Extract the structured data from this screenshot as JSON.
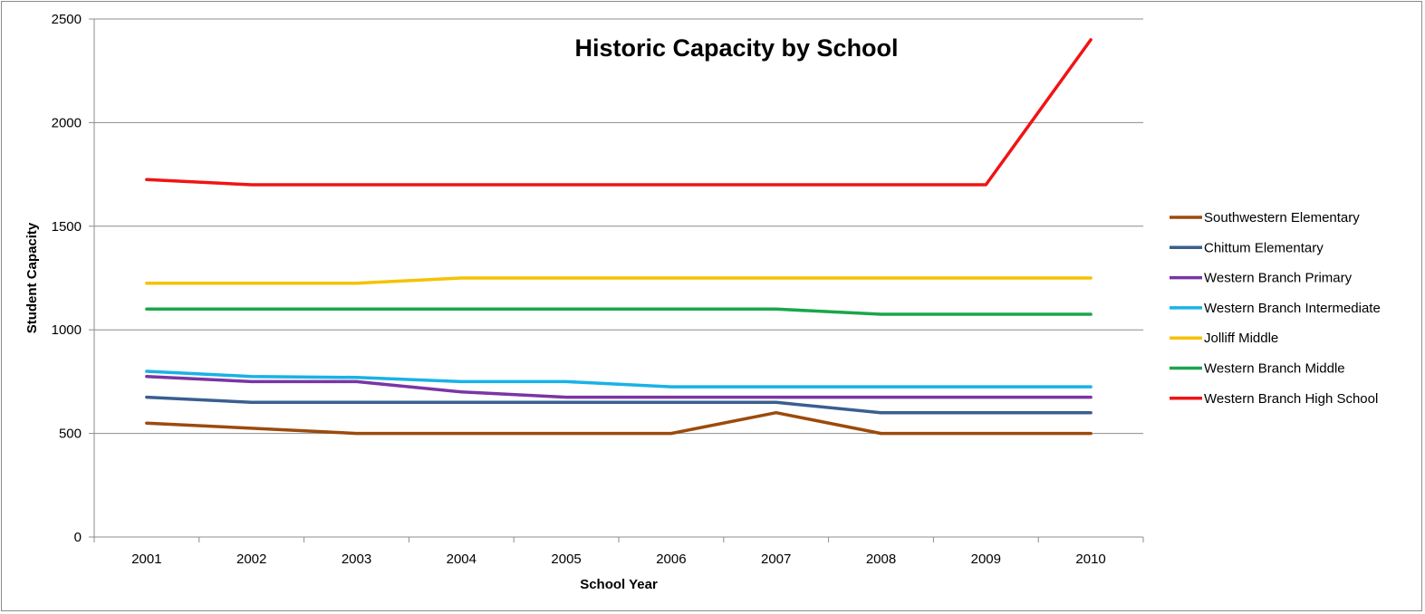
{
  "chart_data": {
    "type": "line",
    "title": "Historic Capacity by School",
    "xlabel": "School Year",
    "ylabel": "Student Capacity",
    "x": [
      "2001",
      "2002",
      "2003",
      "2004",
      "2005",
      "2006",
      "2007",
      "2008",
      "2009",
      "2010"
    ],
    "ylim": [
      0,
      2500
    ],
    "yticks": [
      0,
      500,
      1000,
      1500,
      2000,
      2500
    ],
    "grid": "horizontal",
    "legend_position": "right",
    "series": [
      {
        "name": "Southwestern Elementary",
        "color": "#9c4a0c",
        "values": [
          550,
          525,
          500,
          500,
          500,
          500,
          600,
          500,
          500,
          500
        ]
      },
      {
        "name": "Chittum Elementary",
        "color": "#3a5f8f",
        "values": [
          675,
          650,
          650,
          650,
          650,
          650,
          650,
          600,
          600,
          600
        ]
      },
      {
        "name": "Western Branch Primary",
        "color": "#7a35a5",
        "values": [
          775,
          750,
          750,
          700,
          675,
          675,
          675,
          675,
          675,
          675
        ]
      },
      {
        "name": "Western Branch Intermediate",
        "color": "#19b2e6",
        "values": [
          800,
          775,
          770,
          750,
          750,
          725,
          725,
          725,
          725,
          725
        ]
      },
      {
        "name": "Jolliff Middle",
        "color": "#f5c200",
        "values": [
          1225,
          1225,
          1225,
          1250,
          1250,
          1250,
          1250,
          1250,
          1250,
          1250
        ]
      },
      {
        "name": "Western Branch Middle",
        "color": "#1aa64a",
        "values": [
          1100,
          1100,
          1100,
          1100,
          1100,
          1100,
          1100,
          1075,
          1075,
          1075
        ]
      },
      {
        "name": "Western Branch High School",
        "color": "#f01414",
        "values": [
          1725,
          1700,
          1700,
          1700,
          1700,
          1700,
          1700,
          1700,
          1700,
          2400
        ]
      }
    ]
  }
}
